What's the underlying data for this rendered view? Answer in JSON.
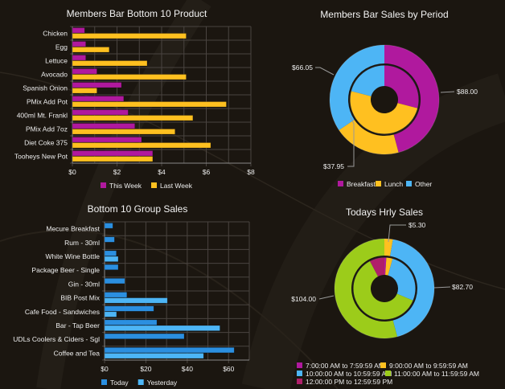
{
  "colors": {
    "background": "#1b1610",
    "magenta": "#b0199e",
    "yellow": "#ffc020",
    "blue": "#2b8fe0",
    "lightblue": "#4db5f5",
    "green": "#9ccc1a",
    "crimson": "#b01f6a"
  },
  "chart_data": [
    {
      "type": "bar",
      "orientation": "horizontal",
      "title": "Members Bar Bottom 10 Product",
      "categories": [
        "Chicken",
        "Egg",
        "Lettuce",
        "Avocado",
        "Spanish Onion",
        "PMix Add Pot",
        "400ml Mt. Frankl",
        "PMix Add 7oz",
        "Diet Coke 375",
        "Tooheys New Pot"
      ],
      "series": [
        {
          "name": "This Week",
          "color": "#b0199e",
          "values": [
            0.55,
            0.6,
            0.6,
            1.1,
            2.2,
            2.3,
            2.5,
            2.8,
            3.1,
            3.6
          ]
        },
        {
          "name": "Last Week",
          "color": "#ffc020",
          "values": [
            5.1,
            1.65,
            3.35,
            5.1,
            1.1,
            6.9,
            5.4,
            4.6,
            6.2,
            3.6
          ]
        }
      ],
      "xlim": [
        0,
        8
      ],
      "xticks": [
        "$0",
        "$2",
        "$4",
        "$6",
        "$8"
      ],
      "grid": true,
      "legend": "bottom"
    },
    {
      "type": "pie",
      "variant": "double-donut",
      "title": "Members Bar Sales by Period",
      "categories": [
        "Breakfast",
        "Lunch",
        "Other"
      ],
      "colors": [
        "#b0199e",
        "#ffc020",
        "#4db5f5"
      ],
      "outer_values": [
        88.0,
        37.95,
        66.05
      ],
      "outer_labels": [
        "$88.00",
        "$37.95",
        "$66.05"
      ],
      "inner_fractions": [
        0.29,
        0.5,
        0.21
      ],
      "legend": "bottom"
    },
    {
      "type": "bar",
      "orientation": "horizontal",
      "title": "Bottom 10 Group Sales",
      "categories": [
        "Mecure Breakfast",
        "Rum - 30ml",
        "White Wine Bottle",
        "Package Beer - Single",
        "Gin - 30ml",
        "BIB Post Mix",
        "Cafe Food - Sandwiches",
        "Bar - Tap Beer",
        "UDLs Coolers & Ciders - Sgl",
        "Coffee and Tea"
      ],
      "series": [
        {
          "name": "Today",
          "color": "#2b8fe0",
          "values": [
            4.0,
            4.8,
            5.7,
            6.6,
            9.8,
            10.8,
            23.8,
            25.3,
            38.5,
            62.7
          ]
        },
        {
          "name": "Yesterday",
          "color": "#4db5f5",
          "values": [
            null,
            null,
            6.6,
            null,
            null,
            30.4,
            5.8,
            55.8,
            null,
            47.9
          ]
        }
      ],
      "xlim": [
        0,
        70
      ],
      "xticks": [
        "$0",
        "$20",
        "$40",
        "$60"
      ],
      "grid": true,
      "legend": "bottom"
    },
    {
      "type": "pie",
      "variant": "double-donut",
      "title": "Todays Hrly Sales",
      "categories": [
        "7:00:00 AM to 7:59:59 AM",
        "9:00:00 AM to 9:59:59 AM",
        "10:00:00 AM to 10:59:59 AM",
        "11:00:00 AM to 11:59:59 AM",
        "12:00:00 PM to 12:59:59 PM"
      ],
      "colors": [
        "#b0199e",
        "#ffc020",
        "#4db5f5",
        "#9ccc1a",
        "#b01f6a"
      ],
      "outer_values": [
        0,
        5.3,
        82.7,
        104.0,
        0
      ],
      "outer_labels": [
        "",
        "$5.30",
        "$82.70",
        "$104.00",
        ""
      ],
      "inner_fractions": [
        0.01,
        0.033,
        0.27,
        0.61,
        0.077
      ],
      "legend": "bottom"
    }
  ]
}
